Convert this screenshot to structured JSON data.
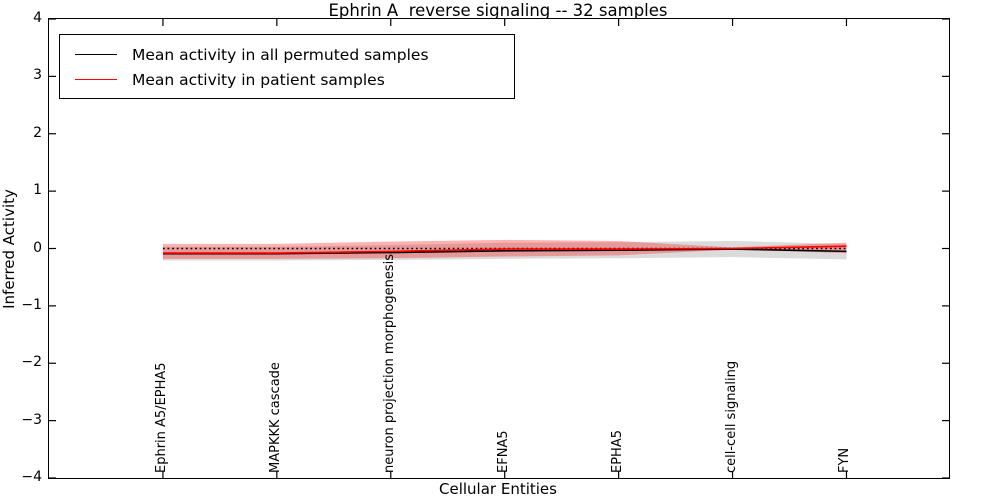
{
  "chart_data": {
    "type": "line",
    "title": "Ephrin A  reverse signaling -- 32 samples",
    "xlabel": "Cellular Entities",
    "ylabel": "Inferred Activity",
    "ylim": [
      -4,
      4
    ],
    "yticks": [
      4,
      3,
      2,
      1,
      0,
      -1,
      -2,
      -3,
      -4
    ],
    "grid": false,
    "legend_position": "upper left",
    "categories": [
      "Ephrin A5/EPHA5",
      "MAPKKK cascade",
      "neuron projection morphogenesis",
      "EFNA5",
      "EPHA5",
      "cell-cell signaling",
      "FYN"
    ],
    "zero_line": {
      "y": 0,
      "color": "#000000",
      "style": "dotted"
    },
    "series": [
      {
        "name": "Mean activity in all permuted samples",
        "color": "#000000",
        "line_style": "solid",
        "values": [
          -0.09,
          -0.09,
          -0.07,
          -0.04,
          -0.03,
          -0.01,
          -0.05
        ],
        "band_upper": [
          0.03,
          0.03,
          0.06,
          0.1,
          0.11,
          0.13,
          0.08
        ],
        "band_lower": [
          -0.21,
          -0.21,
          -0.2,
          -0.18,
          -0.17,
          -0.15,
          -0.19
        ],
        "band_color": "rgba(0,0,0,0.14)"
      },
      {
        "name": "Mean activity in patient samples",
        "color": "#ff0000",
        "line_style": "solid",
        "values": [
          -0.08,
          -0.08,
          -0.05,
          -0.01,
          -0.01,
          0.0,
          0.04
        ],
        "band_upper": [
          0.08,
          0.08,
          0.12,
          0.15,
          0.13,
          0.02,
          0.1
        ],
        "band_lower": [
          -0.18,
          -0.18,
          -0.17,
          -0.14,
          -0.12,
          -0.02,
          -0.08
        ],
        "band_color": "rgba(255,0,0,0.30)"
      }
    ]
  }
}
